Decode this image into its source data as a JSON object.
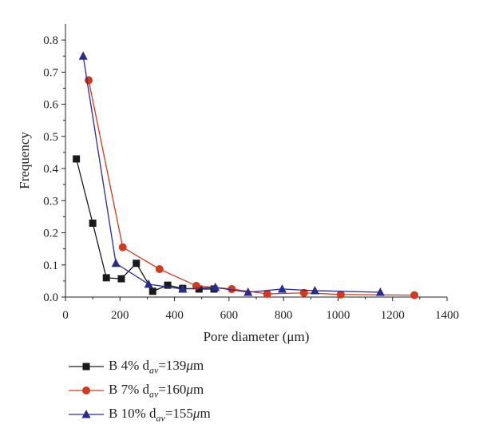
{
  "chart_data": {
    "type": "line",
    "xlabel": "Pore diameter (μm)",
    "ylabel": "Frequency",
    "xlim": [
      0,
      1400
    ],
    "ylim": [
      0,
      0.85
    ],
    "x_ticks": [
      0,
      200,
      400,
      600,
      800,
      1000,
      1200,
      1400
    ],
    "y_ticks": [
      0.0,
      0.1,
      0.2,
      0.3,
      0.4,
      0.5,
      0.6,
      0.7,
      0.8
    ],
    "x_tick_labels": [
      "0",
      "200",
      "400",
      "600",
      "800",
      "1000",
      "1200",
      "1400"
    ],
    "y_tick_labels": [
      "0.0",
      "0.1",
      "0.2",
      "0.3",
      "0.4",
      "0.5",
      "0.6",
      "0.7",
      "0.8"
    ],
    "grid": false,
    "legend_position": "bottom-left",
    "series": [
      {
        "name": "B 4%",
        "legend_prefix": "B 4% d",
        "legend_sub": "av",
        "legend_value": "=139",
        "legend_unit": "μ",
        "legend_unit_rest": "m",
        "color": "#1a1a1a",
        "marker": "square",
        "x": [
          40,
          100,
          150,
          205,
          260,
          320,
          375,
          430,
          490,
          545
        ],
        "y": [
          0.43,
          0.23,
          0.06,
          0.057,
          0.105,
          0.018,
          0.037,
          0.027,
          0.025,
          0.025
        ]
      },
      {
        "name": "B 7%",
        "legend_prefix": "B 7% d",
        "legend_sub": "av",
        "legend_value": "=160",
        "legend_unit": "μ",
        "legend_unit_rest": "m",
        "color": "#d13a1e",
        "marker": "circle",
        "x": [
          85,
          210,
          345,
          480,
          610,
          740,
          875,
          1010,
          1280
        ],
        "y": [
          0.675,
          0.155,
          0.087,
          0.035,
          0.025,
          0.01,
          0.013,
          0.008,
          0.006
        ]
      },
      {
        "name": "B 10%",
        "legend_prefix": "B 10% d",
        "legend_sub": "av",
        "legend_value": "=155",
        "legend_unit": "μ",
        "legend_unit_rest": "m",
        "color": "#2b2a8f",
        "marker": "triangle",
        "x": [
          65,
          185,
          305,
          430,
          550,
          670,
          795,
          915,
          1155
        ],
        "y": [
          0.75,
          0.105,
          0.04,
          0.025,
          0.03,
          0.015,
          0.025,
          0.02,
          0.015
        ]
      }
    ]
  }
}
